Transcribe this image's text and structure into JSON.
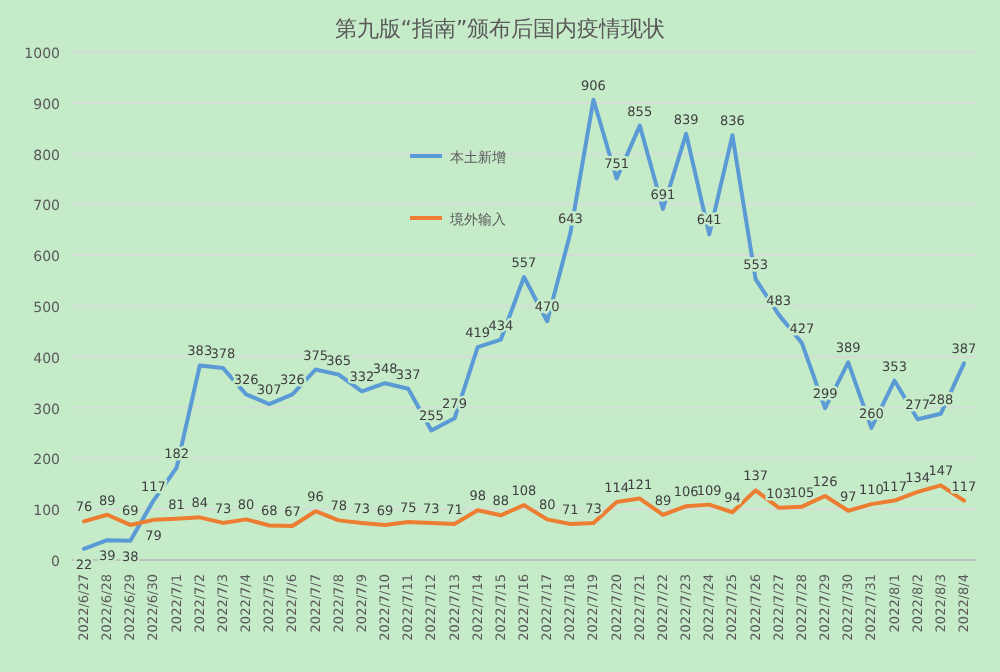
{
  "chart_data": {
    "type": "line",
    "title": "第九版“指南”颁布后国内疫情现状",
    "categories": [
      "2022/6/27",
      "2022/6/28",
      "2022/6/29",
      "2022/6/30",
      "2022/7/1",
      "2022/7/2",
      "2022/7/3",
      "2022/7/4",
      "2022/7/5",
      "2022/7/6",
      "2022/7/7",
      "2022/7/8",
      "2022/7/9",
      "2022/7/10",
      "2022/7/11",
      "2022/7/12",
      "2022/7/13",
      "2022/7/14",
      "2022/7/15",
      "2022/7/16",
      "2022/7/17",
      "2022/7/18",
      "2022/7/19",
      "2022/7/20",
      "2022/7/21",
      "2022/7/22",
      "2022/7/23",
      "2022/7/24",
      "2022/7/25",
      "2022/7/26",
      "2022/7/27",
      "2022/7/28",
      "2022/7/29",
      "2022/7/30",
      "2022/7/31",
      "2022/8/1",
      "2022/8/2",
      "2022/8/3",
      "2022/8/4"
    ],
    "series": [
      {
        "name": "本土新增",
        "color": "#5b9bd5",
        "values": [
          22,
          39,
          38,
          117,
          182,
          383,
          378,
          326,
          307,
          326,
          375,
          365,
          332,
          348,
          337,
          255,
          279,
          419,
          434,
          557,
          470,
          643,
          906,
          751,
          855,
          691,
          839,
          641,
          836,
          553,
          483,
          427,
          299,
          389,
          260,
          353,
          277,
          288,
          387
        ]
      },
      {
        "name": "境外输入",
        "color": "#ed7d31",
        "values": [
          76,
          89,
          69,
          79,
          81,
          84,
          73,
          80,
          68,
          67,
          96,
          78,
          73,
          69,
          75,
          73,
          71,
          98,
          88,
          108,
          80,
          71,
          73,
          114,
          121,
          89,
          106,
          109,
          94,
          137,
          103,
          105,
          126,
          97,
          110,
          117,
          134,
          147,
          117
        ]
      }
    ],
    "ylim": [
      0,
      1000
    ],
    "yticks": [
      0,
      100,
      200,
      300,
      400,
      500,
      600,
      700,
      800,
      900,
      1000
    ],
    "grid": "y",
    "legend": "top left",
    "data_labels": true,
    "marker": "none",
    "line_style": "solid"
  }
}
